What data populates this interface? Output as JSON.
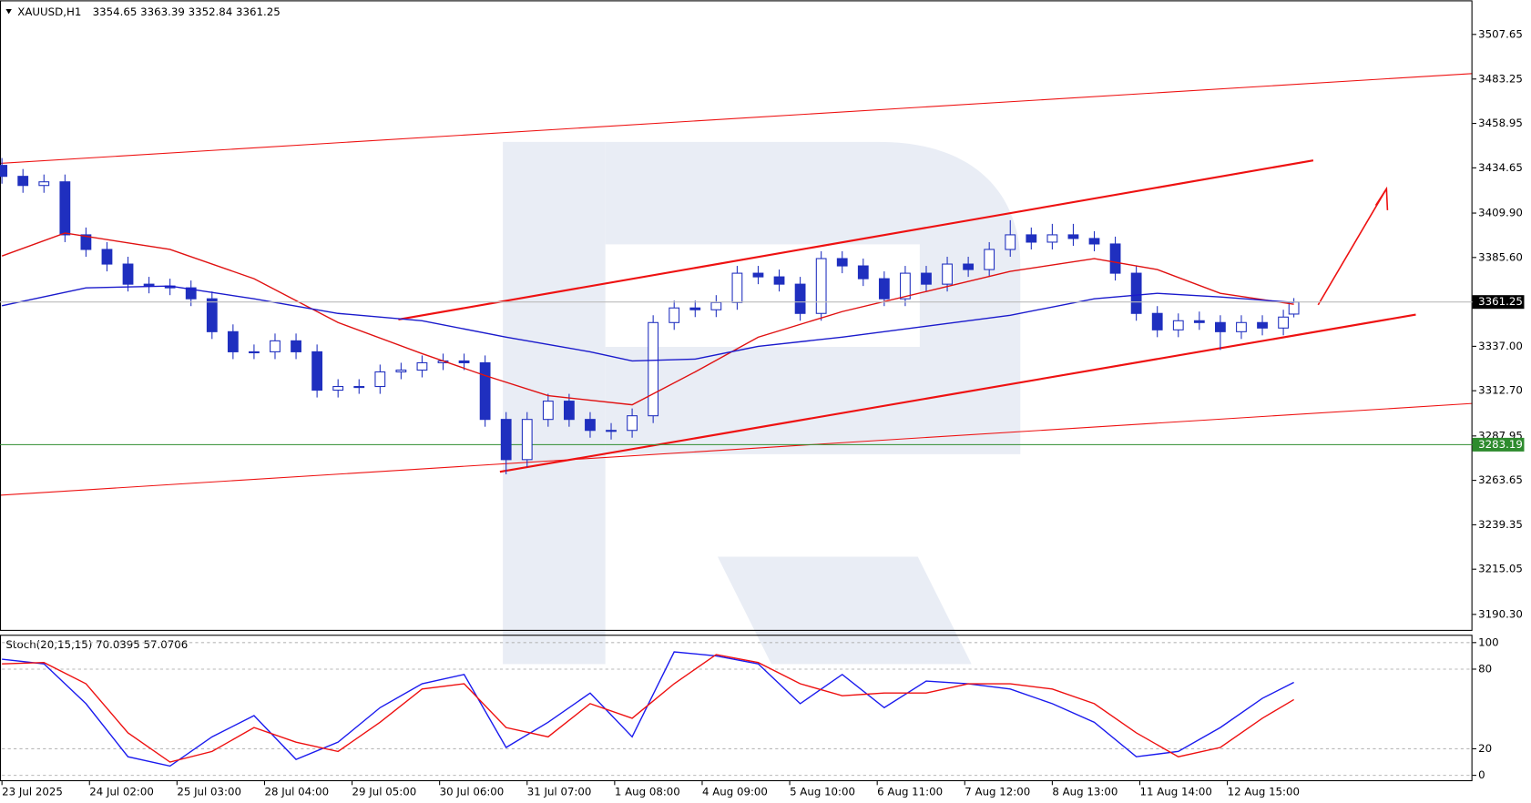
{
  "chart_data": [
    {
      "type": "candlestick",
      "title": "XAUUSD,H1",
      "color": "#1f2fbf",
      "xlim": [
        0,
        420
      ],
      "ylim": [
        3181.3,
        3526.3
      ],
      "yticks": [
        {
          "value": 3190.3,
          "label": "3190.30"
        },
        3215.05,
        3239.35,
        3263.65,
        3287.95,
        {
          "value": 3312.7,
          "label": "3312.70"
        },
        {
          "value": 3337,
          "label": "3337.00"
        },
        {
          "value": 3385.6,
          "label": "3385.60"
        },
        {
          "value": 3409.9,
          "label": "3409.90"
        },
        3434.65,
        3458.95,
        3483.25,
        3507.65
      ],
      "x": [
        0,
        6,
        12,
        18,
        24,
        30,
        36,
        42,
        48,
        54,
        60,
        66,
        72,
        78,
        84,
        90,
        96,
        102,
        108,
        114,
        120,
        126,
        132,
        138,
        144,
        150,
        156,
        162,
        168,
        174,
        180,
        186,
        192,
        198,
        204,
        210,
        216,
        222,
        228,
        234,
        240,
        246,
        252,
        258,
        264,
        270,
        276,
        282,
        288,
        294,
        300,
        306,
        312,
        318,
        324,
        330,
        336,
        342,
        348,
        354,
        360,
        366,
        369
      ],
      "candles": [
        [
          3436,
          3440,
          3426,
          3430
        ],
        [
          3430,
          3434,
          3421,
          3425
        ],
        [
          3425,
          3431,
          3421,
          3427
        ],
        [
          3427,
          3431,
          3394,
          3398
        ],
        [
          3398,
          3402,
          3386,
          3390
        ],
        [
          3390,
          3394,
          3378,
          3382
        ],
        [
          3382,
          3386,
          3367,
          3371
        ],
        [
          3371,
          3375,
          3366,
          3370
        ],
        [
          3370,
          3374,
          3365,
          3369
        ],
        [
          3369,
          3373,
          3359,
          3363
        ],
        [
          3363,
          3367,
          3341,
          3345
        ],
        [
          3345,
          3349,
          3330,
          3334
        ],
        [
          3334,
          3338,
          3330,
          3334
        ],
        [
          3334,
          3344,
          3330,
          3340
        ],
        [
          3340,
          3344,
          3330,
          3334
        ],
        [
          3334,
          3338,
          3309,
          3313
        ],
        [
          3313,
          3319,
          3309,
          3315
        ],
        [
          3315,
          3319,
          3311,
          3315
        ],
        [
          3315,
          3327,
          3311,
          3323
        ],
        [
          3323,
          3328,
          3319,
          3324
        ],
        [
          3324,
          3332,
          3320,
          3328
        ],
        [
          3328,
          3333,
          3324,
          3329
        ],
        [
          3329,
          3333,
          3324,
          3328
        ],
        [
          3328,
          3332,
          3293,
          3297
        ],
        [
          3297,
          3301,
          3267,
          3275
        ],
        [
          3275,
          3301,
          3271,
          3297
        ],
        [
          3297,
          3311,
          3293,
          3307
        ],
        [
          3307,
          3311,
          3293,
          3297
        ],
        [
          3297,
          3301,
          3287,
          3291
        ],
        [
          3291,
          3295,
          3286,
          3291
        ],
        [
          3291,
          3303,
          3287,
          3299
        ],
        [
          3299,
          3354,
          3295,
          3350
        ],
        [
          3350,
          3362,
          3346,
          3358
        ],
        [
          3358,
          3362,
          3353,
          3357
        ],
        [
          3357,
          3365,
          3353,
          3361
        ],
        [
          3361,
          3381,
          3357,
          3377
        ],
        [
          3377,
          3381,
          3371,
          3375
        ],
        [
          3375,
          3379,
          3367,
          3371
        ],
        [
          3371,
          3375,
          3351,
          3355
        ],
        [
          3355,
          3389,
          3351,
          3385
        ],
        [
          3385,
          3389,
          3377,
          3381
        ],
        [
          3381,
          3385,
          3370,
          3374
        ],
        [
          3374,
          3378,
          3359,
          3363
        ],
        [
          3363,
          3381,
          3359,
          3377
        ],
        [
          3377,
          3381,
          3367,
          3371
        ],
        [
          3371,
          3386,
          3367,
          3382
        ],
        [
          3382,
          3386,
          3375,
          3379
        ],
        [
          3379,
          3394,
          3375,
          3390
        ],
        [
          3390,
          3406,
          3386,
          3398
        ],
        [
          3398,
          3402,
          3390,
          3394
        ],
        [
          3394,
          3404,
          3390,
          3398
        ],
        [
          3398,
          3404,
          3392,
          3396
        ],
        [
          3396,
          3400,
          3389,
          3393
        ],
        [
          3393,
          3397,
          3373,
          3377
        ],
        [
          3377,
          3381,
          3351,
          3355
        ],
        [
          3355,
          3359,
          3342,
          3346
        ],
        [
          3346,
          3355,
          3342,
          3351
        ],
        [
          3351,
          3356,
          3346,
          3350
        ],
        [
          3350,
          3354,
          3335,
          3345
        ],
        [
          3345,
          3354,
          3341,
          3350
        ],
        [
          3350,
          3354,
          3343,
          3347
        ],
        [
          3347,
          3357,
          3343,
          3353
        ],
        [
          3354.65,
          3363.39,
          3352.84,
          3361.25
        ]
      ],
      "series": [
        {
          "color": "#e01010",
          "x": [
            0,
            18,
            48,
            72,
            96,
            120,
            138,
            156,
            180,
            198,
            216,
            240,
            264,
            288,
            312,
            330,
            348,
            369
          ],
          "values": [
            3386.4,
            3399,
            3390,
            3374,
            3350,
            3333,
            3321,
            3310,
            3305,
            3323,
            3342,
            3356,
            3367,
            3378,
            3385,
            3379,
            3366,
            3360
          ]
        },
        {
          "color": "#1a1acc",
          "x": [
            0,
            24,
            48,
            72,
            96,
            120,
            144,
            168,
            180,
            198,
            216,
            240,
            264,
            288,
            312,
            330,
            348,
            369
          ],
          "values": [
            3359.2,
            3369,
            3370,
            3363,
            3355,
            3351,
            3342,
            3334,
            3329,
            3330,
            3337,
            3342,
            3348,
            3354,
            3363,
            3366,
            3364,
            3361
          ]
        }
      ],
      "levels": [
        {
          "value": 3283.19,
          "color": "#2e8b2e"
        }
      ]
    },
    {
      "type": "line",
      "title": "Stoch(20,15,15)",
      "xlim": [
        0,
        420
      ],
      "ylim": [
        -4.4,
        105.9
      ],
      "yticks": [
        0,
        20,
        80,
        100
      ],
      "grid": true,
      "xticks": [
        {
          "value": 0,
          "label": "23 Jul 2025"
        },
        {
          "value": 25,
          "label": "24 Jul 02:00"
        },
        {
          "value": 50,
          "label": "25 Jul 03:00"
        },
        {
          "value": 75,
          "label": "28 Jul 04:00"
        },
        {
          "value": 100,
          "label": "29 Jul 05:00"
        },
        {
          "value": 125,
          "label": "30 Jul 06:00"
        },
        {
          "value": 150,
          "label": "31 Jul 07:00"
        },
        {
          "value": 175,
          "label": "1 Aug 08:00"
        },
        {
          "value": 200,
          "label": "4 Aug 09:00"
        },
        {
          "value": 225,
          "label": "5 Aug 10:00"
        },
        {
          "value": 250,
          "label": "6 Aug 11:00"
        },
        {
          "value": 275,
          "label": "7 Aug 12:00"
        },
        {
          "value": 300,
          "label": "8 Aug 13:00"
        },
        {
          "value": 325,
          "label": "11 Aug 14:00"
        },
        {
          "value": 350,
          "label": "12 Aug 15:00"
        }
      ],
      "x": [
        0,
        12,
        24,
        36,
        48,
        60,
        72,
        84,
        96,
        108,
        120,
        132,
        144,
        156,
        168,
        180,
        192,
        204,
        216,
        228,
        240,
        252,
        264,
        276,
        288,
        300,
        312,
        324,
        336,
        348,
        360,
        369
      ],
      "series": [
        {
          "color": "#1a1aee",
          "values": [
            87.5,
            84,
            54,
            14,
            7,
            29,
            45,
            12,
            25,
            51,
            69,
            76,
            21,
            40,
            62,
            29,
            93,
            90,
            84,
            54,
            76,
            51,
            71,
            69,
            65,
            54,
            40,
            14,
            18,
            36,
            58,
            70.0395
          ]
        },
        {
          "color": "#ee1010",
          "values": [
            84,
            85,
            69,
            32,
            10,
            18,
            36,
            25,
            18,
            40,
            65,
            69,
            36,
            29,
            54,
            43,
            69,
            91,
            85,
            69,
            60,
            62,
            62,
            69,
            69,
            65,
            54,
            32,
            14,
            21,
            43,
            57.0706
          ]
        }
      ]
    }
  ]
}
